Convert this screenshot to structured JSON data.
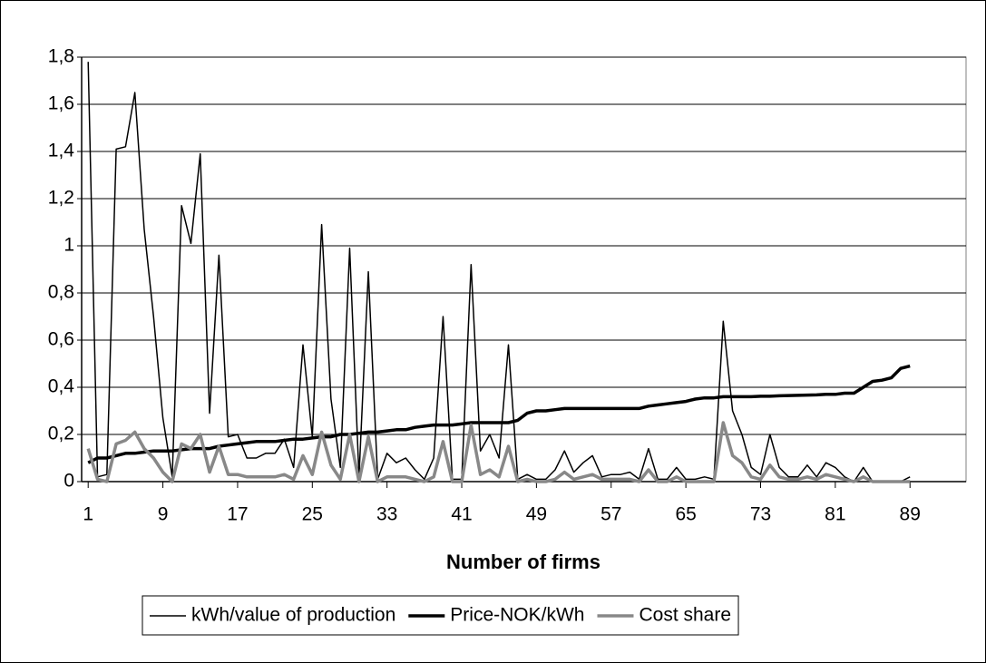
{
  "chart_data": {
    "type": "line",
    "x_label": "Number of firms",
    "x": [
      1,
      2,
      3,
      4,
      5,
      6,
      7,
      8,
      9,
      10,
      11,
      12,
      13,
      14,
      15,
      16,
      17,
      18,
      19,
      20,
      21,
      22,
      23,
      24,
      25,
      26,
      27,
      28,
      29,
      30,
      31,
      32,
      33,
      34,
      35,
      36,
      37,
      38,
      39,
      40,
      41,
      42,
      43,
      44,
      45,
      46,
      47,
      48,
      49,
      50,
      51,
      52,
      53,
      54,
      55,
      56,
      57,
      58,
      59,
      60,
      61,
      62,
      63,
      64,
      65,
      66,
      67,
      68,
      69,
      70,
      71,
      72,
      73,
      74,
      75,
      76,
      77,
      78,
      79,
      80,
      81,
      82,
      83,
      84,
      85,
      86,
      87,
      88,
      89
    ],
    "xlim": [
      0.3,
      95
    ],
    "xticks": [
      1,
      9,
      17,
      25,
      33,
      41,
      49,
      57,
      65,
      73,
      81,
      89
    ],
    "ylim": [
      0,
      1.8
    ],
    "yticks": [
      0,
      {
        "value": 0.2,
        "label": "0,2"
      },
      {
        "value": 0.4,
        "label": "0,4"
      },
      {
        "value": 0.6,
        "label": "0,6"
      },
      {
        "value": 0.8,
        "label": "0,8"
      },
      1,
      {
        "value": 1.2,
        "label": "1,2"
      },
      {
        "value": 1.4,
        "label": "1,4"
      },
      {
        "value": 1.6,
        "label": "1,6"
      },
      {
        "value": 1.8,
        "label": "1,8"
      }
    ],
    "grid": true,
    "legend": "bottom",
    "series": [
      {
        "name": "kWh/value of production",
        "color": "#000000",
        "width": 1.5,
        "values": [
          1.78,
          0.02,
          0.03,
          1.41,
          1.42,
          1.65,
          1.07,
          0.7,
          0.27,
          0.02,
          1.17,
          1.01,
          1.39,
          0.29,
          0.96,
          0.19,
          0.2,
          0.1,
          0.1,
          0.12,
          0.12,
          0.18,
          0.06,
          0.58,
          0.19,
          1.09,
          0.35,
          0.06,
          0.99,
          0.02,
          0.89,
          0.01,
          0.12,
          0.08,
          0.1,
          0.05,
          0.01,
          0.1,
          0.7,
          0.01,
          0.01,
          0.92,
          0.13,
          0.2,
          0.1,
          0.58,
          0.01,
          0.03,
          0.01,
          0.01,
          0.05,
          0.13,
          0.04,
          0.08,
          0.11,
          0.02,
          0.03,
          0.03,
          0.04,
          0.01,
          0.14,
          0.01,
          0.01,
          0.06,
          0.01,
          0.01,
          0.02,
          0.01,
          0.68,
          0.3,
          0.2,
          0.06,
          0.03,
          0.2,
          0.06,
          0.02,
          0.02,
          0.07,
          0.02,
          0.08,
          0.06,
          0.02,
          0.0,
          0.06,
          0.0,
          0.0,
          0.0,
          0.0,
          0.02
        ]
      },
      {
        "name": "Price-NOK/kWh",
        "color": "#000000",
        "width": 3.5,
        "values": [
          0.08,
          0.1,
          0.1,
          0.11,
          0.12,
          0.12,
          0.125,
          0.13,
          0.13,
          0.13,
          0.135,
          0.14,
          0.14,
          0.14,
          0.15,
          0.155,
          0.16,
          0.165,
          0.17,
          0.17,
          0.17,
          0.175,
          0.18,
          0.18,
          0.185,
          0.19,
          0.19,
          0.2,
          0.2,
          0.205,
          0.21,
          0.21,
          0.215,
          0.22,
          0.22,
          0.23,
          0.235,
          0.24,
          0.24,
          0.24,
          0.245,
          0.25,
          0.25,
          0.25,
          0.25,
          0.25,
          0.26,
          0.29,
          0.3,
          0.3,
          0.305,
          0.31,
          0.31,
          0.31,
          0.31,
          0.31,
          0.31,
          0.31,
          0.31,
          0.31,
          0.32,
          0.325,
          0.33,
          0.335,
          0.34,
          0.35,
          0.355,
          0.355,
          0.36,
          0.36,
          0.36,
          0.36,
          0.362,
          0.362,
          0.364,
          0.365,
          0.366,
          0.367,
          0.368,
          0.37,
          0.37,
          0.375,
          0.375,
          0.4,
          0.425,
          0.43,
          0.44,
          0.48,
          0.49
        ]
      },
      {
        "name": "Cost share",
        "color": "#888888",
        "width": 3.5,
        "values": [
          0.14,
          0.01,
          0.0,
          0.16,
          0.175,
          0.21,
          0.14,
          0.1,
          0.04,
          0.0,
          0.16,
          0.14,
          0.2,
          0.04,
          0.15,
          0.03,
          0.03,
          0.02,
          0.02,
          0.02,
          0.02,
          0.03,
          0.01,
          0.11,
          0.03,
          0.21,
          0.07,
          0.01,
          0.2,
          0.0,
          0.19,
          0.0,
          0.02,
          0.02,
          0.02,
          0.01,
          0.0,
          0.02,
          0.17,
          0.0,
          0.0,
          0.24,
          0.03,
          0.05,
          0.02,
          0.15,
          0.0,
          0.01,
          0.0,
          0.0,
          0.01,
          0.04,
          0.01,
          0.02,
          0.03,
          0.01,
          0.01,
          0.01,
          0.01,
          0.0,
          0.05,
          0.0,
          0.0,
          0.02,
          0.0,
          0.0,
          0.0,
          0.0,
          0.25,
          0.11,
          0.08,
          0.02,
          0.01,
          0.07,
          0.02,
          0.01,
          0.01,
          0.02,
          0.01,
          0.03,
          0.02,
          0.01,
          0.0,
          0.02,
          0.0,
          0.0,
          0.0,
          0.0,
          0.0
        ]
      }
    ]
  }
}
